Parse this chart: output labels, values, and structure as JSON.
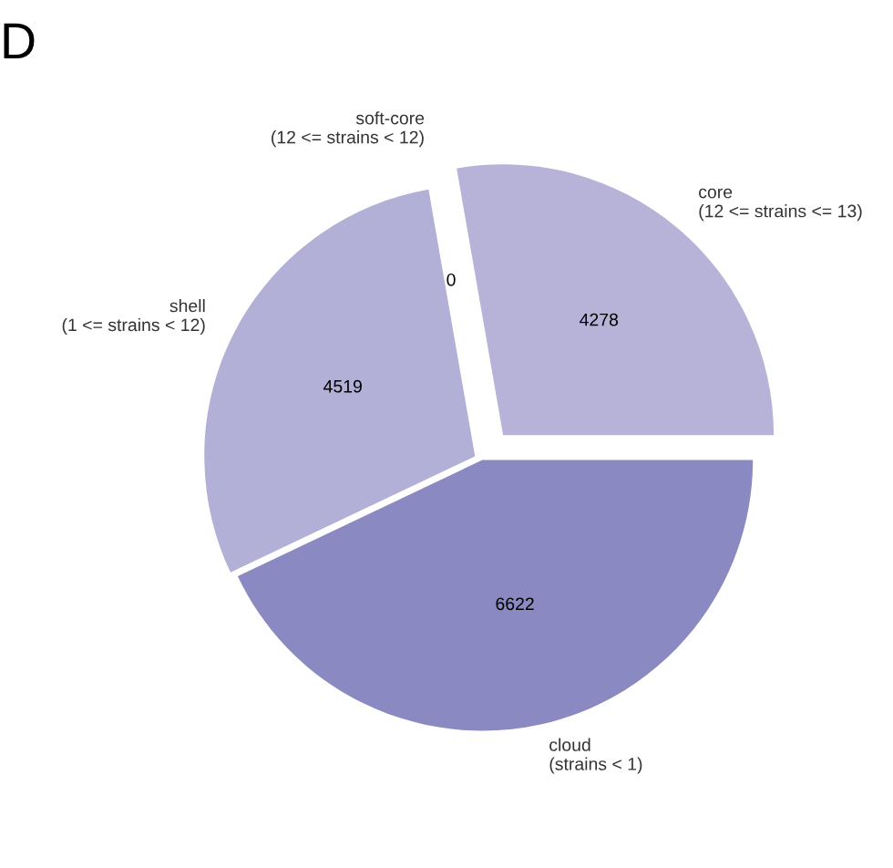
{
  "chart_data": {
    "type": "pie",
    "annotations": [
      "D"
    ],
    "categories": [
      "core\n(12 <= strains <= 13)",
      "soft-core\n(12 <= strains < 12)",
      "shell\n(1 <= strains < 12)",
      "cloud\n(strains < 1)"
    ],
    "values": [
      4278,
      0,
      4519,
      6622
    ],
    "colors": [
      "#b6b2d8",
      "#b6b2d8",
      "#b3b0d7",
      "#8b89c1"
    ],
    "value_labels": [
      "4278",
      "0",
      "4519",
      "6622"
    ],
    "legend": false
  }
}
